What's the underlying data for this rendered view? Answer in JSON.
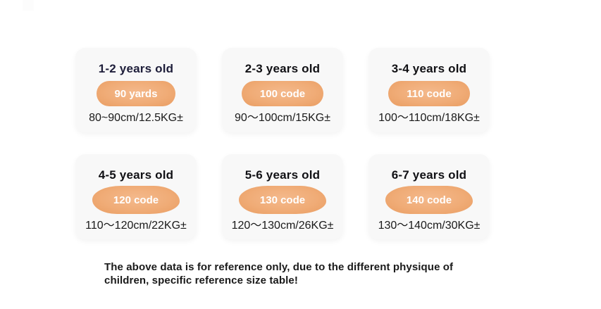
{
  "cards": [
    {
      "title": "1-2 years old",
      "badge": "90 yards",
      "range": "80~90cm/12.5KG±"
    },
    {
      "title": "2-3 years old",
      "badge": "100 code",
      "range": "90〜100cm/15KG±"
    },
    {
      "title": "3-4 years old",
      "badge": "110 code",
      "range": "100〜110cm/18KG±"
    },
    {
      "title": "4-5 years old",
      "badge": "120 code",
      "range": "110〜120cm/22KG±"
    },
    {
      "title": "5-6 years old",
      "badge": "130 code",
      "range": "120〜130cm/26KG±"
    },
    {
      "title": "6-7 years old",
      "badge": "140 code",
      "range": "130〜140cm/30KG±"
    }
  ],
  "footer": {
    "line1": "The above data is for reference only, due to the different physique of",
    "line2": "children, specific reference size table!"
  },
  "colors": {
    "badge-orange": "#e99d62",
    "badge-orange-mid": "#f0ac77",
    "badge-orange-light": "#f4b98c",
    "title-navy": "#1e1e3a",
    "title-dark": "#101014",
    "text-dark": "#1a1a1a",
    "card-bg": "#f8f8f8"
  }
}
